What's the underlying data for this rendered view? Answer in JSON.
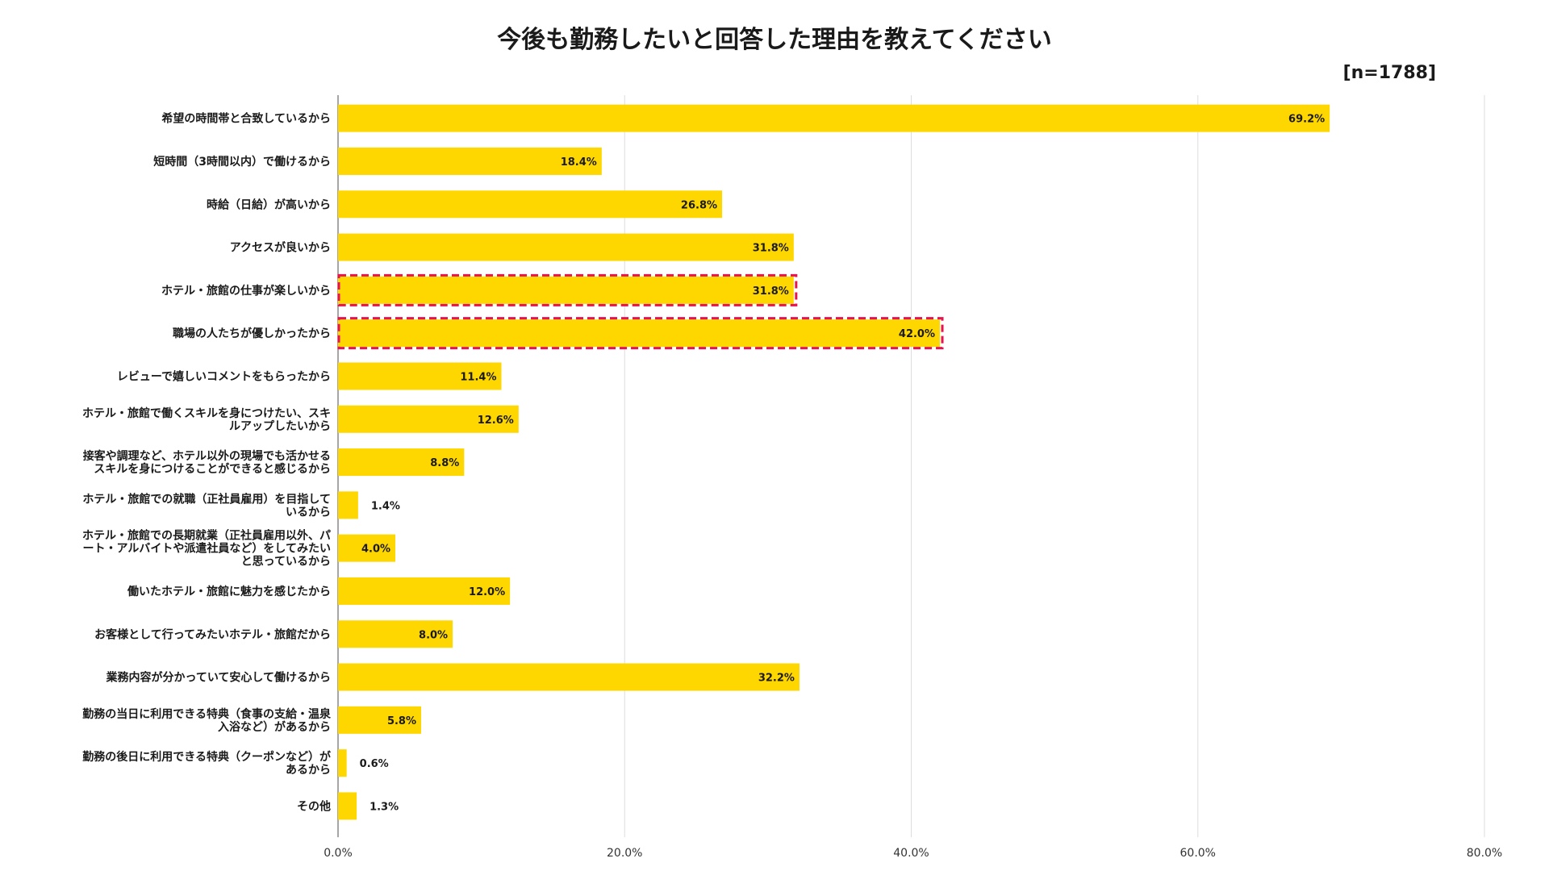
{
  "chart_data": {
    "type": "bar",
    "orientation": "horizontal",
    "title": "今後も勤務したいと回答した理由を教えてください",
    "sample_size": "[n=1788]",
    "xlim": [
      0,
      80
    ],
    "x_ticks": [
      "0.0%",
      "20.0%",
      "40.0%",
      "60.0%",
      "80.0%"
    ],
    "x_tick_values": [
      0,
      20,
      40,
      60,
      80
    ],
    "grid": true,
    "bar_color": "#FFD700",
    "highlight_color": "#E8124C",
    "categories": [
      {
        "lines": [
          "希望の時間帯と合致しているから"
        ],
        "value": 69.2,
        "label": "69.2%",
        "highlight": false
      },
      {
        "lines": [
          "短時間（3時間以内）で働けるから"
        ],
        "value": 18.4,
        "label": "18.4%",
        "highlight": false
      },
      {
        "lines": [
          "時給（日給）が高いから"
        ],
        "value": 26.8,
        "label": "26.8%",
        "highlight": false
      },
      {
        "lines": [
          "アクセスが良いから"
        ],
        "value": 31.8,
        "label": "31.8%",
        "highlight": false
      },
      {
        "lines": [
          "ホテル・旅館の仕事が楽しいから"
        ],
        "value": 31.8,
        "label": "31.8%",
        "highlight": true
      },
      {
        "lines": [
          "職場の人たちが優しかったから"
        ],
        "value": 42.0,
        "label": "42.0%",
        "highlight": true
      },
      {
        "lines": [
          "レビューで嬉しいコメントをもらったから"
        ],
        "value": 11.4,
        "label": "11.4%",
        "highlight": false
      },
      {
        "lines": [
          "ホテル・旅館で働くスキルを身につけたい、スキ",
          "ルアップしたいから"
        ],
        "value": 12.6,
        "label": "12.6%",
        "highlight": false
      },
      {
        "lines": [
          "接客や調理など、ホテル以外の現場でも活かせる",
          "スキルを身につけることができると感じるから"
        ],
        "value": 8.8,
        "label": "8.8%",
        "highlight": false
      },
      {
        "lines": [
          "ホテル・旅館での就職（正社員雇用）を目指して",
          "いるから"
        ],
        "value": 1.4,
        "label": "1.4%",
        "highlight": false
      },
      {
        "lines": [
          "ホテル・旅館での長期就業（正社員雇用以外、パ",
          "ート・アルバイトや派遣社員など）をしてみたい",
          "と思っているから"
        ],
        "value": 4.0,
        "label": "4.0%",
        "highlight": false
      },
      {
        "lines": [
          "働いたホテル・旅館に魅力を感じたから"
        ],
        "value": 12.0,
        "label": "12.0%",
        "highlight": false
      },
      {
        "lines": [
          "お客様として行ってみたいホテル・旅館だから"
        ],
        "value": 8.0,
        "label": "8.0%",
        "highlight": false
      },
      {
        "lines": [
          "業務内容が分かっていて安心して働けるから"
        ],
        "value": 32.2,
        "label": "32.2%",
        "highlight": false
      },
      {
        "lines": [
          "勤務の当日に利用できる特典（食事の支給・温泉",
          "入浴など）があるから"
        ],
        "value": 5.8,
        "label": "5.8%",
        "highlight": false
      },
      {
        "lines": [
          "勤務の後日に利用できる特典（クーポンなど）が",
          "あるから"
        ],
        "value": 0.6,
        "label": "0.6%",
        "highlight": false
      },
      {
        "lines": [
          "その他"
        ],
        "value": 1.3,
        "label": "1.3%",
        "highlight": false
      }
    ]
  }
}
